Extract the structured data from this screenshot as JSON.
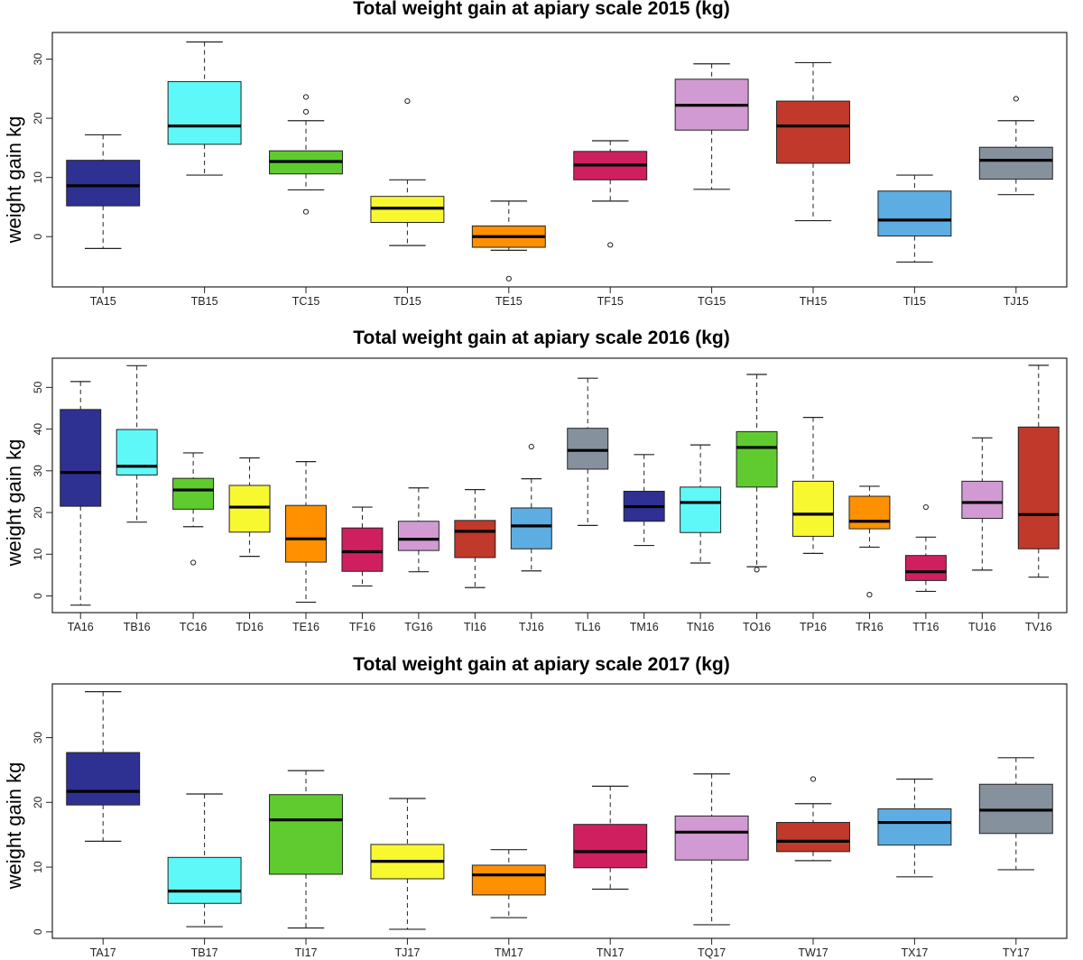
{
  "chart_data": [
    {
      "type": "box",
      "title": "Total weight gain at apiary scale 2015 (kg)",
      "ylabel": "weight gain kg",
      "xlabel": "",
      "ylim": [
        -8.5,
        34.5
      ],
      "yticks": [
        0,
        10,
        20,
        30
      ],
      "boxes": [
        {
          "label": "TA15",
          "color": "#2e3192",
          "min": -2,
          "q1": 5.2,
          "median": 8.6,
          "q3": 12.9,
          "max": 17.2,
          "outliers": []
        },
        {
          "label": "TB15",
          "color": "#5ff8f8",
          "min": 10.4,
          "q1": 15.6,
          "median": 18.7,
          "q3": 26.2,
          "max": 32.9,
          "outliers": []
        },
        {
          "label": "TC15",
          "color": "#5fcb2f",
          "min": 7.9,
          "q1": 10.6,
          "median": 12.7,
          "q3": 14.5,
          "max": 19.6,
          "outliers": [
            4.2,
            21.1,
            23.6
          ]
        },
        {
          "label": "TD15",
          "color": "#f8f830",
          "min": -1.5,
          "q1": 2.4,
          "median": 4.8,
          "q3": 6.8,
          "max": 9.6,
          "outliers": [
            22.9
          ]
        },
        {
          "label": "TE15",
          "color": "#ff9000",
          "min": -2.3,
          "q1": -1.8,
          "median": 0,
          "q3": 1.8,
          "max": 6,
          "outliers": [
            -7.1
          ]
        },
        {
          "label": "TF15",
          "color": "#d01f5f",
          "min": 6,
          "q1": 9.6,
          "median": 12.1,
          "q3": 14.4,
          "max": 16.2,
          "outliers": [
            -1.4
          ]
        },
        {
          "label": "TG15",
          "color": "#d29ad2",
          "min": 8,
          "q1": 18,
          "median": 22.2,
          "q3": 26.6,
          "max": 29.2,
          "outliers": []
        },
        {
          "label": "TH15",
          "color": "#c0392b",
          "min": 2.7,
          "q1": 12.4,
          "median": 18.7,
          "q3": 22.9,
          "max": 29.4,
          "outliers": []
        },
        {
          "label": "TI15",
          "color": "#5dade2",
          "min": -4.3,
          "q1": 0.1,
          "median": 2.8,
          "q3": 7.7,
          "max": 10.4,
          "outliers": []
        },
        {
          "label": "TJ15",
          "color": "#85929e",
          "min": 7.1,
          "q1": 9.7,
          "median": 12.9,
          "q3": 15.1,
          "max": 19.6,
          "outliers": [
            23.3
          ]
        }
      ]
    },
    {
      "type": "box",
      "title": "Total weight gain at apiary scale 2016 (kg)",
      "ylabel": "weight gain kg",
      "xlabel": "",
      "ylim": [
        -4,
        57
      ],
      "yticks": [
        0,
        10,
        20,
        30,
        40,
        50
      ],
      "boxes": [
        {
          "label": "TA16",
          "color": "#2e3192",
          "min": -2.2,
          "q1": 21.5,
          "median": 29.6,
          "q3": 44.7,
          "max": 51.4,
          "outliers": []
        },
        {
          "label": "TB16",
          "color": "#5ff8f8",
          "min": 17.7,
          "q1": 29,
          "median": 31.1,
          "q3": 39.9,
          "max": 55.2,
          "outliers": []
        },
        {
          "label": "TC16",
          "color": "#5fcb2f",
          "min": 16.6,
          "q1": 20.8,
          "median": 25.4,
          "q3": 28.2,
          "max": 34.3,
          "outliers": [
            8
          ]
        },
        {
          "label": "TD16",
          "color": "#f8f830",
          "min": 9.5,
          "q1": 15.3,
          "median": 21.3,
          "q3": 26.5,
          "max": 33.1,
          "outliers": []
        },
        {
          "label": "TE16",
          "color": "#ff9000",
          "min": -1.5,
          "q1": 8.1,
          "median": 13.7,
          "q3": 21.7,
          "max": 32.2,
          "outliers": []
        },
        {
          "label": "TF16",
          "color": "#d01f5f",
          "min": 2.4,
          "q1": 5.9,
          "median": 10.6,
          "q3": 16.3,
          "max": 21.3,
          "outliers": []
        },
        {
          "label": "TG16",
          "color": "#d29ad2",
          "min": 5.8,
          "q1": 10.9,
          "median": 13.6,
          "q3": 17.9,
          "max": 25.9,
          "outliers": []
        },
        {
          "label": "TI16",
          "color": "#c0392b",
          "min": 2,
          "q1": 9.2,
          "median": 15.5,
          "q3": 18.1,
          "max": 25.5,
          "outliers": []
        },
        {
          "label": "TJ16",
          "color": "#5dade2",
          "min": 6,
          "q1": 11.3,
          "median": 16.8,
          "q3": 21.1,
          "max": 28.1,
          "outliers": [
            35.8
          ]
        },
        {
          "label": "TL16",
          "color": "#85929e",
          "min": 16.9,
          "q1": 30.4,
          "median": 34.9,
          "q3": 40.2,
          "max": 52.2,
          "outliers": []
        },
        {
          "label": "TM16",
          "color": "#2e3192",
          "min": 12.1,
          "q1": 17.9,
          "median": 21.4,
          "q3": 25.1,
          "max": 33.9,
          "outliers": []
        },
        {
          "label": "TN16",
          "color": "#5ff8f8",
          "min": 7.9,
          "q1": 15.2,
          "median": 22.4,
          "q3": 26.1,
          "max": 36.2,
          "outliers": []
        },
        {
          "label": "TO16",
          "color": "#5fcb2f",
          "min": 7,
          "q1": 26.1,
          "median": 35.6,
          "q3": 39.4,
          "max": 53.1,
          "outliers": [
            6.3
          ]
        },
        {
          "label": "TP16",
          "color": "#f8f830",
          "min": 10.2,
          "q1": 14.3,
          "median": 19.6,
          "q3": 27.5,
          "max": 42.8,
          "outliers": []
        },
        {
          "label": "TR16",
          "color": "#ff9000",
          "min": 11.7,
          "q1": 16.1,
          "median": 17.9,
          "q3": 23.9,
          "max": 26.3,
          "outliers": [
            0.3
          ]
        },
        {
          "label": "TT16",
          "color": "#d01f5f",
          "min": 1.1,
          "q1": 3.7,
          "median": 5.8,
          "q3": 9.7,
          "max": 14.1,
          "outliers": [
            21.3
          ]
        },
        {
          "label": "TU16",
          "color": "#d29ad2",
          "min": 6.2,
          "q1": 18.6,
          "median": 22.4,
          "q3": 27.5,
          "max": 37.9,
          "outliers": []
        },
        {
          "label": "TV16",
          "color": "#c0392b",
          "min": 4.5,
          "q1": 11.3,
          "median": 19.5,
          "q3": 40.5,
          "max": 55.3,
          "outliers": []
        }
      ]
    },
    {
      "type": "box",
      "title": "Total weight gain at apiary scale 2017 (kg)",
      "ylabel": "weight gain  kg",
      "xlabel": "",
      "ylim": [
        -1,
        38.3
      ],
      "yticks": [
        0,
        10,
        20,
        30
      ],
      "boxes": [
        {
          "label": "TA17",
          "color": "#2e3192",
          "min": 14,
          "q1": 19.6,
          "median": 21.7,
          "q3": 27.7,
          "max": 37.1,
          "outliers": []
        },
        {
          "label": "TB17",
          "color": "#5ff8f8",
          "min": 0.8,
          "q1": 4.4,
          "median": 6.3,
          "q3": 11.5,
          "max": 21.3,
          "outliers": []
        },
        {
          "label": "TI17",
          "color": "#5fcb2f",
          "min": 0.6,
          "q1": 8.9,
          "median": 17.3,
          "q3": 21.2,
          "max": 24.9,
          "outliers": []
        },
        {
          "label": "TJ17",
          "color": "#f8f830",
          "min": 0.4,
          "q1": 8.2,
          "median": 10.9,
          "q3": 13.5,
          "max": 20.6,
          "outliers": []
        },
        {
          "label": "TM17",
          "color": "#ff9000",
          "min": 2.2,
          "q1": 5.7,
          "median": 8.8,
          "q3": 10.3,
          "max": 12.7,
          "outliers": []
        },
        {
          "label": "TN17",
          "color": "#d01f5f",
          "min": 6.6,
          "q1": 9.9,
          "median": 12.4,
          "q3": 16.6,
          "max": 22.5,
          "outliers": []
        },
        {
          "label": "TQ17",
          "color": "#d29ad2",
          "min": 1.1,
          "q1": 11.1,
          "median": 15.4,
          "q3": 17.9,
          "max": 24.4,
          "outliers": []
        },
        {
          "label": "TW17",
          "color": "#c0392b",
          "min": 11,
          "q1": 12.4,
          "median": 14,
          "q3": 16.9,
          "max": 19.8,
          "outliers": [
            23.6
          ]
        },
        {
          "label": "TX17",
          "color": "#5dade2",
          "min": 8.5,
          "q1": 13.4,
          "median": 16.9,
          "q3": 19,
          "max": 23.6,
          "outliers": []
        },
        {
          "label": "TY17",
          "color": "#85929e",
          "min": 9.6,
          "q1": 15.2,
          "median": 18.8,
          "q3": 22.8,
          "max": 26.9,
          "outliers": []
        }
      ]
    }
  ]
}
